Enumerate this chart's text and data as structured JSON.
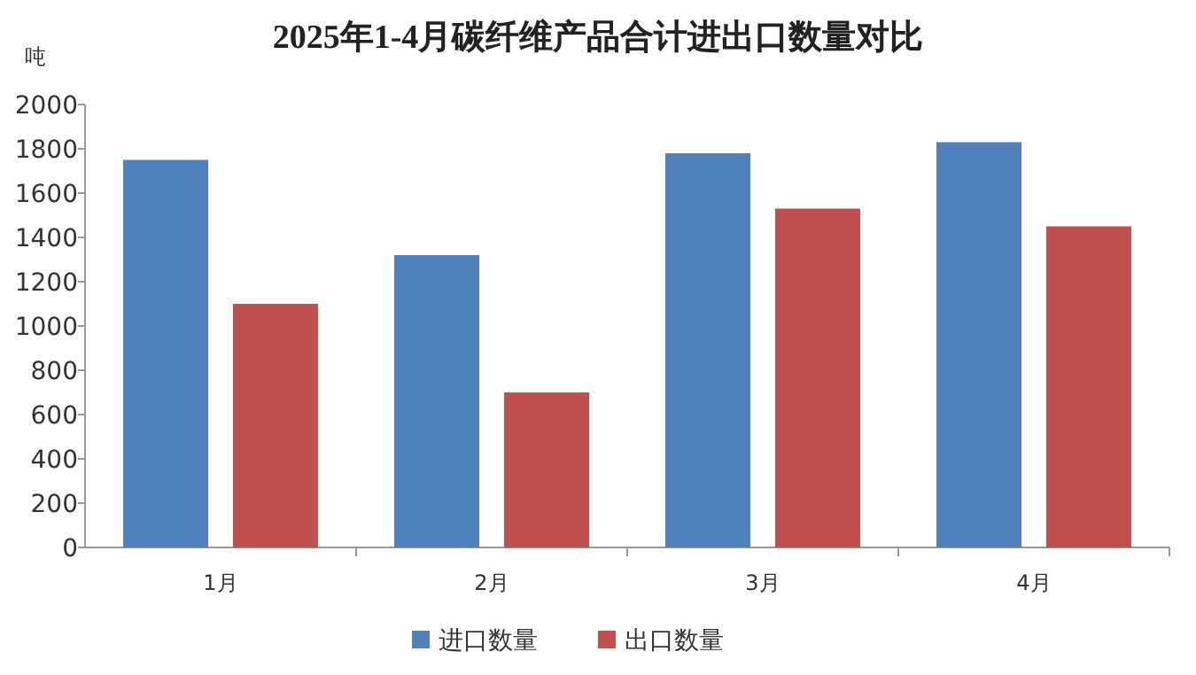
{
  "chart_data": {
    "type": "bar",
    "title": "2025年1-4月碳纤维产品合计进出口数量对比",
    "ylabel": "吨",
    "categories": [
      "1月",
      "2月",
      "3月",
      "4月"
    ],
    "series": [
      {
        "name": "进口数量",
        "color": "#4f81bd",
        "values": [
          1750,
          1320,
          1780,
          1830
        ]
      },
      {
        "name": "出口数量",
        "color": "#c0504d",
        "values": [
          1100,
          700,
          1530,
          1450
        ]
      }
    ],
    "ylim": [
      0,
      2000
    ],
    "yticks": [
      0,
      200,
      400,
      600,
      800,
      1000,
      1200,
      1400,
      1600,
      1800,
      2000
    ],
    "legend": "bottom"
  }
}
